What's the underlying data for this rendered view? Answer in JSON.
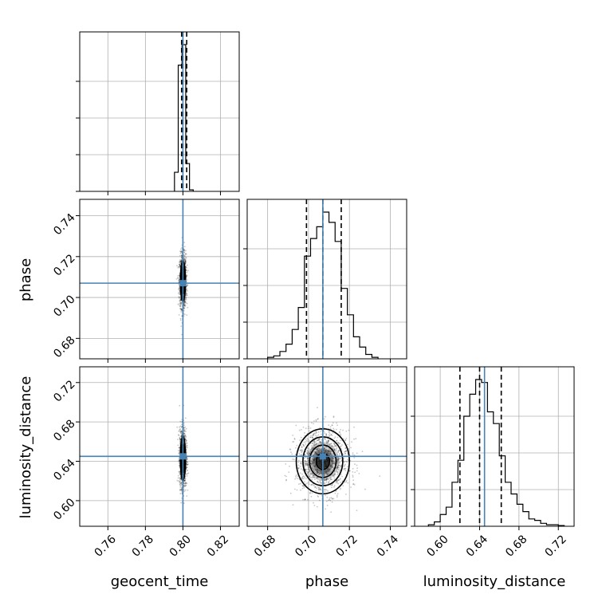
{
  "chart_data": {
    "type": "corner",
    "parameters": [
      "geocent_time",
      "phase",
      "luminosity_distance"
    ],
    "axes": {
      "geocent_time": {
        "label": "geocent_time",
        "range": [
          0.745,
          0.83
        ],
        "ticks": [
          0.76,
          0.78,
          0.8,
          0.82
        ],
        "tick_labels": [
          "0.76",
          "0.78",
          "0.80",
          "0.82"
        ],
        "injection": 0.8
      },
      "phase": {
        "label": "phase",
        "range": [
          0.67,
          0.748
        ],
        "ticks": [
          0.68,
          0.7,
          0.72,
          0.74
        ],
        "tick_labels": [
          "0.68",
          "0.70",
          "0.72",
          "0.74"
        ],
        "injection": 0.707
      },
      "luminosity_distance": {
        "label": "luminosity_distance",
        "range": [
          0.574,
          0.736
        ],
        "ticks": [
          0.6,
          0.64,
          0.68,
          0.72
        ],
        "tick_labels": [
          "0.60",
          "0.64",
          "0.68",
          "0.72"
        ],
        "injection": 0.645
      }
    },
    "histograms": [
      {
        "param": "geocent_time",
        "bin_edges": [
          0.7955,
          0.7975,
          0.7995,
          0.8015,
          0.8035,
          0.8055
        ],
        "counts": [
          0.13,
          0.86,
          1.0,
          0.19,
          0.01
        ],
        "quantiles": [
          0.7993,
          0.8,
          0.802
        ]
      },
      {
        "param": "phase",
        "bin_edges": [
          0.68,
          0.683,
          0.686,
          0.689,
          0.692,
          0.695,
          0.698,
          0.701,
          0.704,
          0.707,
          0.71,
          0.713,
          0.716,
          0.719,
          0.722,
          0.725,
          0.728,
          0.731,
          0.734
        ],
        "counts": [
          0.01,
          0.02,
          0.05,
          0.1,
          0.2,
          0.35,
          0.7,
          0.82,
          0.9,
          1.0,
          0.93,
          0.8,
          0.48,
          0.3,
          0.15,
          0.08,
          0.03,
          0.01
        ],
        "quantiles": [
          0.699,
          0.707,
          0.716
        ]
      },
      {
        "param": "luminosity_distance",
        "bin_edges": [
          0.588,
          0.594,
          0.6,
          0.606,
          0.612,
          0.618,
          0.624,
          0.63,
          0.636,
          0.642,
          0.648,
          0.654,
          0.66,
          0.666,
          0.672,
          0.678,
          0.684,
          0.69,
          0.696,
          0.702,
          0.708,
          0.714,
          0.72,
          0.726
        ],
        "counts": [
          0.01,
          0.03,
          0.08,
          0.13,
          0.3,
          0.45,
          0.75,
          0.9,
          1.0,
          0.98,
          0.78,
          0.7,
          0.48,
          0.3,
          0.22,
          0.15,
          0.1,
          0.05,
          0.04,
          0.02,
          0.01,
          0.01,
          0.005
        ],
        "quantiles": [
          0.62,
          0.64,
          0.662
        ]
      }
    ],
    "scatter_2d": [
      {
        "x": "geocent_time",
        "y": "phase",
        "center": [
          0.8,
          0.708
        ],
        "sigma": [
          0.0009,
          0.0065
        ],
        "contour_levels_sigma": [
          0.5,
          1.0,
          1.5
        ]
      },
      {
        "x": "geocent_time",
        "y": "luminosity_distance",
        "center": [
          0.8,
          0.643
        ],
        "sigma": [
          0.0009,
          0.015
        ],
        "contour_levels_sigma": [
          0.5,
          1.0,
          1.5
        ]
      },
      {
        "x": "phase",
        "y": "luminosity_distance",
        "center": [
          0.707,
          0.64
        ],
        "sigma": [
          0.0065,
          0.0165
        ],
        "contour_levels_sigma": [
          0.5,
          1.0,
          1.5,
          2.0
        ]
      }
    ],
    "injection_color": "#4682b4",
    "hist_color": "#000000",
    "grid": true
  }
}
